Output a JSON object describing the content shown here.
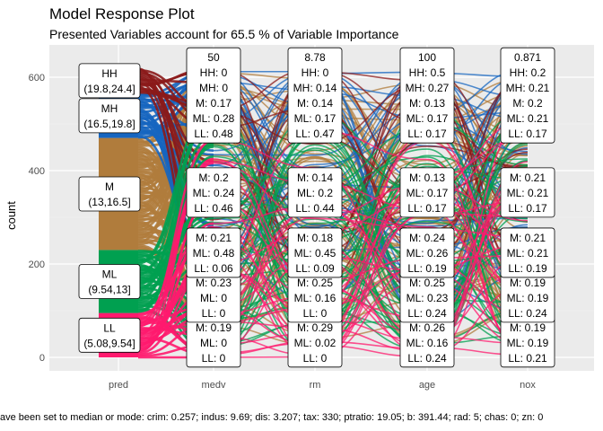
{
  "chart_data": {
    "type": "alluvial",
    "title": "Model Response Plot",
    "subtitle": "Presented Variables account for 65.5 % of Variable Importance",
    "ylabel": "count",
    "ylim": [
      0,
      620
    ],
    "yticks": [
      0,
      200,
      400,
      600
    ],
    "axes": [
      "pred",
      "medv",
      "rm",
      "age",
      "nox"
    ],
    "response_levels": [
      "HH",
      "MH",
      "M",
      "ML",
      "LL"
    ],
    "response_colors": {
      "HH": "#8B1A1A",
      "MH": "#1565C0",
      "M": "#B07C3C",
      "ML": "#00A050",
      "LL": "#FF1A6E"
    },
    "pred_bins": [
      {
        "level": "LL",
        "range": "(5.08,9.54]",
        "lo": 0,
        "hi": 95
      },
      {
        "level": "ML",
        "range": "(9.54,13]",
        "lo": 95,
        "hi": 230
      },
      {
        "level": "M",
        "range": "(13,16.5]",
        "lo": 230,
        "hi": 470
      },
      {
        "level": "MH",
        "range": "(16.5,19.8]",
        "lo": 470,
        "hi": 565
      },
      {
        "level": "HH",
        "range": "(19.8,24.4]",
        "lo": 565,
        "hi": 620
      }
    ],
    "feature_columns": [
      {
        "axis": "medv",
        "labels": [
          {
            "y": 10,
            "lines": [
              "M: 0.19",
              "ML: 0",
              "LL: 0"
            ]
          },
          {
            "y": 106,
            "lines": [
              "M: 0.23",
              "ML: 0",
              "LL: 0"
            ]
          },
          {
            "y": 202,
            "lines": [
              "M: 0.21",
              "ML: 0.48",
              "LL: 0.06"
            ]
          },
          {
            "y": 331,
            "lines": [
              "M: 0.2",
              "ML: 0.24",
              "LL: 0.46"
            ]
          },
          {
            "y": 490,
            "lines": [
              "50",
              "HH: 0",
              "MH: 0",
              "M: 0.17",
              "ML: 0.28",
              "LL: 0.48"
            ]
          }
        ]
      },
      {
        "axis": "rm",
        "labels": [
          {
            "y": 10,
            "lines": [
              "M: 0.29",
              "ML: 0.02",
              "LL: 0"
            ]
          },
          {
            "y": 106,
            "lines": [
              "M: 0.25",
              "ML: 0.16",
              "LL: 0"
            ]
          },
          {
            "y": 202,
            "lines": [
              "M: 0.18",
              "ML: 0.45",
              "LL: 0.09"
            ]
          },
          {
            "y": 331,
            "lines": [
              "M: 0.14",
              "ML: 0.2",
              "LL: 0.44"
            ]
          },
          {
            "y": 490,
            "lines": [
              "8.78",
              "HH: 0",
              "MH: 0.14",
              "M: 0.14",
              "ML: 0.17",
              "LL: 0.47"
            ]
          }
        ]
      },
      {
        "axis": "age",
        "labels": [
          {
            "y": 10,
            "lines": [
              "M: 0.26",
              "ML: 0.16",
              "LL: 0.24"
            ]
          },
          {
            "y": 106,
            "lines": [
              "M: 0.25",
              "ML: 0.23",
              "LL: 0.24"
            ]
          },
          {
            "y": 202,
            "lines": [
              "M: 0.24",
              "ML: 0.26",
              "LL: 0.19"
            ]
          },
          {
            "y": 331,
            "lines": [
              "M: 0.13",
              "ML: 0.17",
              "LL: 0.17"
            ]
          },
          {
            "y": 490,
            "lines": [
              "100",
              "HH: 0.5",
              "MH: 0.27",
              "M: 0.13",
              "ML: 0.17",
              "LL: 0.17"
            ]
          }
        ]
      },
      {
        "axis": "nox",
        "labels": [
          {
            "y": 10,
            "lines": [
              "M: 0.19",
              "ML: 0.19",
              "LL: 0.21"
            ]
          },
          {
            "y": 106,
            "lines": [
              "M: 0.19",
              "ML: 0.19",
              "LL: 0.24"
            ]
          },
          {
            "y": 202,
            "lines": [
              "M: 0.21",
              "ML: 0.21",
              "LL: 0.19"
            ]
          },
          {
            "y": 331,
            "lines": [
              "M: 0.21",
              "ML: 0.21",
              "LL: 0.17"
            ]
          },
          {
            "y": 490,
            "lines": [
              "0.871",
              "HH: 0.2",
              "MH: 0.21",
              "M: 0.2",
              "ML: 0.21",
              "LL: 0.17"
            ]
          }
        ]
      }
    ],
    "caption": "ave been set to median or mode: crim: 0.257; indus: 9.69; dis: 3.207; tax: 330; ptratio: 19.05; b: 391.44; rad: 5; chas: 0; zn: 0"
  }
}
